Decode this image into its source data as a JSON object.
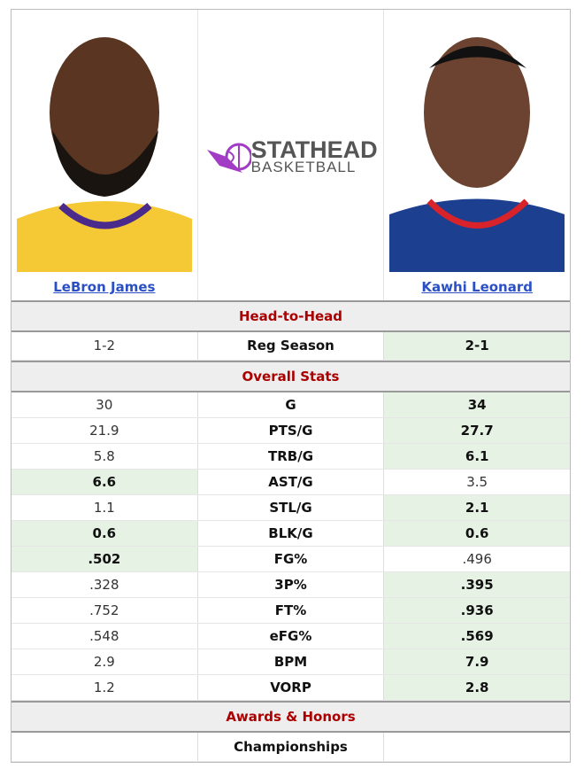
{
  "players": [
    {
      "name": "LeBron James",
      "jersey_color": "#f5c935"
    },
    {
      "name": "Kawhi Leonard",
      "jersey_color": "#1d3f8f"
    }
  ],
  "logo": {
    "line1": "STATHEAD",
    "line2": "BASKETBALL",
    "color": "#a23cc4"
  },
  "sections": {
    "h2h": "Head-to-Head",
    "overall": "Overall Stats",
    "awards": "Awards & Honors"
  },
  "h2h": [
    {
      "label": "Reg Season",
      "left": "1-2",
      "right": "2-1",
      "winner": "right"
    }
  ],
  "stats": [
    {
      "label": "G",
      "left": "30",
      "right": "34",
      "winner": "right"
    },
    {
      "label": "PTS/G",
      "left": "21.9",
      "right": "27.7",
      "winner": "right"
    },
    {
      "label": "TRB/G",
      "left": "5.8",
      "right": "6.1",
      "winner": "right"
    },
    {
      "label": "AST/G",
      "left": "6.6",
      "right": "3.5",
      "winner": "left"
    },
    {
      "label": "STL/G",
      "left": "1.1",
      "right": "2.1",
      "winner": "right"
    },
    {
      "label": "BLK/G",
      "left": "0.6",
      "right": "0.6",
      "winner": "both"
    },
    {
      "label": "FG%",
      "left": ".502",
      "right": ".496",
      "winner": "left"
    },
    {
      "label": "3P%",
      "left": ".328",
      "right": ".395",
      "winner": "right"
    },
    {
      "label": "FT%",
      "left": ".752",
      "right": ".936",
      "winner": "right"
    },
    {
      "label": "eFG%",
      "left": ".548",
      "right": ".569",
      "winner": "right"
    },
    {
      "label": "BPM",
      "left": "2.9",
      "right": "7.9",
      "winner": "right"
    },
    {
      "label": "VORP",
      "left": "1.2",
      "right": "2.8",
      "winner": "right"
    }
  ],
  "awards": [
    {
      "label": "Championships",
      "left": "",
      "right": ""
    }
  ]
}
